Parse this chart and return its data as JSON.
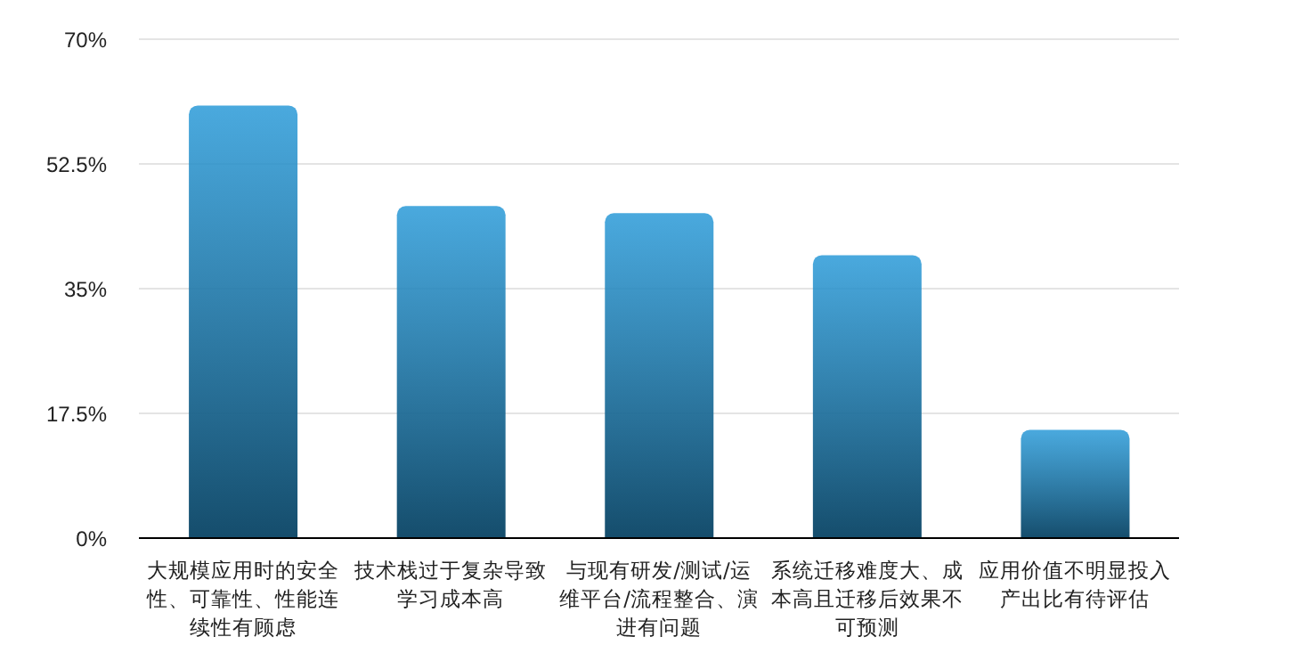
{
  "chart_data": {
    "type": "bar",
    "categories": [
      "大规模应用时的安全性、可靠性、性能连续性有顾虑",
      "技术栈过于复杂导致学习成本高",
      "与现有研发/测试/运维平台/流程整合、演进有问题",
      "系统迁移难度大、成本高且迁移后效果不可预测",
      "应用价值不明显投入产出比有待评估"
    ],
    "values": [
      60.7,
      46.6,
      45.6,
      39.7,
      15.2
    ],
    "color": "#2a9ad8",
    "ylim": [
      0,
      70
    ],
    "yticks": [
      {
        "value": 0,
        "label": "0%"
      },
      {
        "value": 17.5,
        "label": "17.5%"
      },
      {
        "value": 35,
        "label": "35%"
      },
      {
        "value": 52.5,
        "label": "52.5%"
      },
      {
        "value": 70,
        "label": "70%"
      }
    ],
    "grid": "y"
  }
}
